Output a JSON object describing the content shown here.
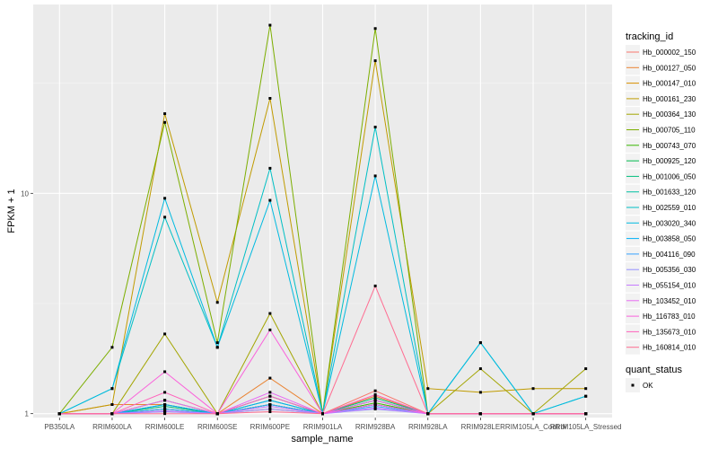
{
  "chart_data": {
    "type": "line",
    "xlabel": "sample_name",
    "ylabel": "FPKM + 1",
    "y_scale": "log10",
    "ylim": [
      0.96,
      72
    ],
    "y_ticks": [
      1,
      10
    ],
    "y_tick_labels": [
      "1",
      "10"
    ],
    "categories": [
      "PB350LA",
      "RRIM600LA",
      "RRIM600LE",
      "RRIM600SE",
      "RRIM600PE",
      "RRIM901LA",
      "RRIM928BA",
      "RRIM928LA",
      "RRIM928LE",
      "RRIM105LA_Control",
      "RRIM105LA_Stressed"
    ],
    "legend_title": "tracking_id",
    "shape_legend_title": "quant_status",
    "shape_legend_label": "OK",
    "series": [
      {
        "name": "Hb_000002_150",
        "color": "#F8766D",
        "values": [
          1.0,
          1.0,
          1.02,
          1.0,
          1.05,
          1.0,
          1.27,
          1.0,
          1.0,
          1.0,
          1.0
        ]
      },
      {
        "name": "Hb_000127_050",
        "color": "#EA8331",
        "values": [
          1.0,
          1.1,
          1.1,
          1.0,
          1.45,
          1.0,
          1.2,
          1.0,
          1.0,
          1.0,
          1.0
        ]
      },
      {
        "name": "Hb_000147_010",
        "color": "#D89000",
        "values": [
          1.0,
          1.0,
          1.05,
          1.0,
          1.1,
          1.0,
          1.1,
          1.0,
          1.0,
          1.0,
          1.0
        ]
      },
      {
        "name": "Hb_000161_230",
        "color": "#C09B00",
        "values": [
          1.0,
          1.1,
          23.0,
          3.2,
          27.0,
          1.0,
          40.0,
          1.3,
          1.25,
          1.3,
          1.3
        ]
      },
      {
        "name": "Hb_000364_130",
        "color": "#A3A500",
        "values": [
          1.0,
          1.0,
          2.3,
          1.0,
          2.85,
          1.0,
          1.15,
          1.0,
          1.6,
          1.0,
          1.6
        ]
      },
      {
        "name": "Hb_000705_110",
        "color": "#7CAE00",
        "values": [
          1.0,
          2.0,
          21.0,
          2.1,
          58.0,
          1.0,
          56.0,
          1.0,
          1.0,
          1.0,
          1.0
        ]
      },
      {
        "name": "Hb_000743_070",
        "color": "#39B600",
        "values": [
          1.0,
          1.0,
          1.15,
          1.0,
          1.1,
          1.0,
          1.12,
          1.0,
          1.0,
          1.0,
          1.0
        ]
      },
      {
        "name": "Hb_000925_120",
        "color": "#00BB4E",
        "values": [
          1.0,
          1.0,
          1.1,
          1.0,
          1.15,
          1.0,
          1.15,
          1.0,
          1.0,
          1.0,
          1.0
        ]
      },
      {
        "name": "Hb_001006_050",
        "color": "#00BF7D",
        "values": [
          1.0,
          1.0,
          1.08,
          1.0,
          1.2,
          1.0,
          1.18,
          1.0,
          1.0,
          1.0,
          1.0
        ]
      },
      {
        "name": "Hb_001633_120",
        "color": "#00C1A3",
        "values": [
          1.0,
          1.0,
          1.05,
          1.0,
          1.1,
          1.0,
          1.1,
          1.0,
          1.0,
          1.0,
          1.0
        ]
      },
      {
        "name": "Hb_002559_010",
        "color": "#00BFC4",
        "values": [
          1.0,
          1.3,
          7.8,
          2.0,
          13.0,
          1.0,
          20.0,
          1.0,
          2.1,
          1.0,
          1.2
        ]
      },
      {
        "name": "Hb_003020_340",
        "color": "#00BAE0",
        "values": [
          1.0,
          1.3,
          9.5,
          2.0,
          9.3,
          1.0,
          12.0,
          1.0,
          2.1,
          1.0,
          1.2
        ]
      },
      {
        "name": "Hb_003858_050",
        "color": "#00B0F6",
        "values": [
          1.0,
          1.0,
          1.1,
          1.0,
          1.15,
          1.0,
          1.1,
          1.0,
          1.0,
          1.0,
          1.0
        ]
      },
      {
        "name": "Hb_004116_090",
        "color": "#35A2FF",
        "values": [
          1.0,
          1.0,
          1.05,
          1.0,
          1.1,
          1.0,
          1.08,
          1.0,
          1.0,
          1.0,
          1.0
        ]
      },
      {
        "name": "Hb_005356_030",
        "color": "#9590FF",
        "values": [
          1.0,
          1.0,
          1.02,
          1.0,
          1.05,
          1.0,
          1.05,
          1.0,
          1.0,
          1.0,
          1.0
        ]
      },
      {
        "name": "Hb_055154_010",
        "color": "#C77CFF",
        "values": [
          1.0,
          1.0,
          1.03,
          1.0,
          1.08,
          1.0,
          1.06,
          1.0,
          1.0,
          1.0,
          1.0
        ]
      },
      {
        "name": "Hb_103452_010",
        "color": "#E76BF3",
        "values": [
          1.0,
          1.0,
          1.15,
          1.0,
          1.25,
          1.0,
          1.15,
          1.0,
          1.0,
          1.0,
          1.0
        ]
      },
      {
        "name": "Hb_116783_010",
        "color": "#FA62DB",
        "values": [
          1.0,
          1.0,
          1.55,
          1.0,
          2.4,
          1.0,
          1.1,
          1.0,
          1.0,
          1.0,
          1.0
        ]
      },
      {
        "name": "Hb_135673_010",
        "color": "#FF62BC",
        "values": [
          1.0,
          1.0,
          1.25,
          1.0,
          1.2,
          1.0,
          1.22,
          1.0,
          1.0,
          1.0,
          1.0
        ]
      },
      {
        "name": "Hb_160814_010",
        "color": "#FF6C91",
        "values": [
          1.0,
          1.0,
          1.0,
          1.0,
          1.02,
          1.0,
          3.8,
          1.0,
          1.0,
          1.0,
          1.0
        ]
      }
    ]
  }
}
